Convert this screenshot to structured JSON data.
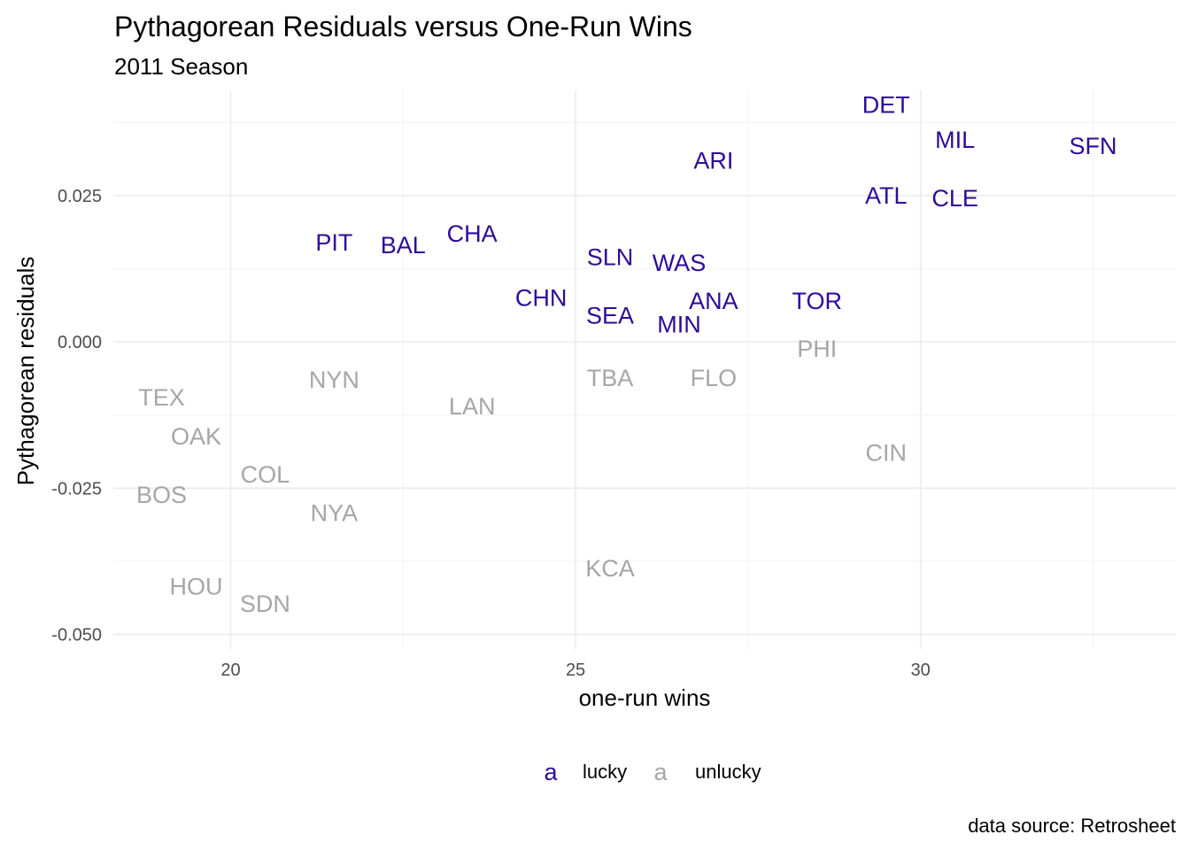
{
  "chart_data": {
    "type": "scatter",
    "title": "Pythagorean Residuals versus One-Run Wins",
    "subtitle": "2011 Season",
    "xlabel": "one-run wins",
    "ylabel": "Pythagorean residuals",
    "caption": "data source: Retrosheet",
    "xlim": [
      18.3,
      33.7
    ],
    "ylim": [
      -0.0525,
      0.043
    ],
    "x_ticks": [
      20,
      25,
      30
    ],
    "x_tick_labels": [
      "20",
      "25",
      "30"
    ],
    "y_ticks": [
      0.025,
      0.0,
      -0.025,
      -0.05
    ],
    "y_tick_labels": [
      "0.025",
      "0.000",
      "-0.025",
      "-0.050"
    ],
    "grid": true,
    "legend_position": "bottom",
    "legend_key_glyph": "a",
    "colors": {
      "lucky": "#2e0a99",
      "unlucky": "#a6a6a6"
    },
    "series": [
      {
        "name": "lucky",
        "points": [
          {
            "label": "DET",
            "x": 29.5,
            "y": 0.0405
          },
          {
            "label": "MIL",
            "x": 30.5,
            "y": 0.0345
          },
          {
            "label": "SFN",
            "x": 32.5,
            "y": 0.0335
          },
          {
            "label": "ARI",
            "x": 27.0,
            "y": 0.031
          },
          {
            "label": "ATL",
            "x": 29.5,
            "y": 0.025
          },
          {
            "label": "CLE",
            "x": 30.5,
            "y": 0.0245
          },
          {
            "label": "PIT",
            "x": 21.5,
            "y": 0.017
          },
          {
            "label": "BAL",
            "x": 22.5,
            "y": 0.0165
          },
          {
            "label": "CHA",
            "x": 23.5,
            "y": 0.0185
          },
          {
            "label": "SLN",
            "x": 25.5,
            "y": 0.0145
          },
          {
            "label": "WAS",
            "x": 26.5,
            "y": 0.0135
          },
          {
            "label": "CHN",
            "x": 24.5,
            "y": 0.0075
          },
          {
            "label": "ANA",
            "x": 27.0,
            "y": 0.007
          },
          {
            "label": "TOR",
            "x": 28.5,
            "y": 0.007
          },
          {
            "label": "SEA",
            "x": 25.5,
            "y": 0.0045
          },
          {
            "label": "MIN",
            "x": 26.5,
            "y": 0.003
          }
        ]
      },
      {
        "name": "unlucky",
        "points": [
          {
            "label": "PHI",
            "x": 28.5,
            "y": -0.0012
          },
          {
            "label": "NYN",
            "x": 21.5,
            "y": -0.0065
          },
          {
            "label": "TBA",
            "x": 25.5,
            "y": -0.0062
          },
          {
            "label": "FLO",
            "x": 27.0,
            "y": -0.0062
          },
          {
            "label": "TEX",
            "x": 19.0,
            "y": -0.0095
          },
          {
            "label": "LAN",
            "x": 23.5,
            "y": -0.011
          },
          {
            "label": "OAK",
            "x": 19.5,
            "y": -0.0162
          },
          {
            "label": "CIN",
            "x": 29.5,
            "y": -0.019
          },
          {
            "label": "COL",
            "x": 20.5,
            "y": -0.0227
          },
          {
            "label": "BOS",
            "x": 19.0,
            "y": -0.0262
          },
          {
            "label": "NYA",
            "x": 21.5,
            "y": -0.0293
          },
          {
            "label": "KCA",
            "x": 25.5,
            "y": -0.0387
          },
          {
            "label": "HOU",
            "x": 19.5,
            "y": -0.0418
          },
          {
            "label": "SDN",
            "x": 20.5,
            "y": -0.0448
          }
        ]
      }
    ]
  }
}
